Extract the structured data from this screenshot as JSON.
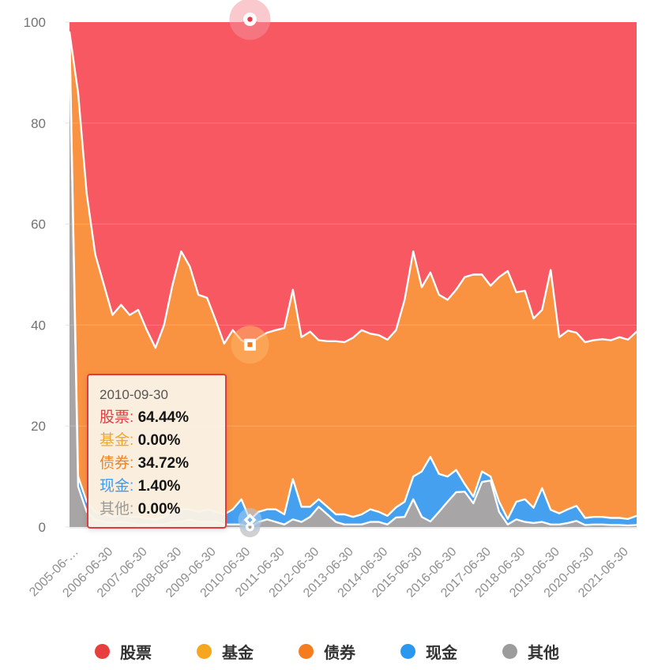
{
  "chart_data": {
    "type": "area",
    "stacked": true,
    "title": "",
    "xlabel": "",
    "ylabel": "",
    "ylim": [
      0,
      100
    ],
    "y_ticks": [
      0,
      20,
      40,
      60,
      80,
      100
    ],
    "grid": true,
    "legend_position": "bottom",
    "x_count": 67,
    "x_tick_every": 4,
    "x_tick_labels": [
      "2005-06-…",
      "2006-06-30",
      "2007-06-30",
      "2008-06-30",
      "2009-06-30",
      "2010-06-30",
      "2011-06-30",
      "2012-06-30",
      "2013-06-30",
      "2014-06-30",
      "2015-06-30",
      "2016-06-30",
      "2017-06-30",
      "2018-06-30",
      "2019-06-30",
      "2020-06-30",
      "2021-06-30"
    ],
    "stack_order_bottom_to_top": [
      "other",
      "cash",
      "bonds",
      "funds",
      "stocks"
    ],
    "series": [
      {
        "id": "stocks",
        "name": "股票",
        "color": "#f75862",
        "values": [
          2,
          14,
          34,
          46,
          52,
          58,
          56,
          58,
          57,
          61,
          64.5,
          60,
          52,
          45.4,
          48.4,
          54,
          54.6,
          59,
          63.7,
          61,
          63,
          64.44,
          62.5,
          61.5,
          61,
          60.6,
          53,
          62.4,
          61.3,
          63,
          63.2,
          63.2,
          63.4,
          62.5,
          61,
          61.7,
          62,
          62.9,
          61,
          55,
          45.4,
          52.5,
          49.6,
          54,
          55,
          53,
          50.5,
          50,
          50,
          52.2,
          50.5,
          49.3,
          53.5,
          53.2,
          58.7,
          57,
          49.1,
          62.4,
          61.1,
          61.5,
          63.4,
          63,
          62.8,
          63,
          62.4,
          62.9,
          61.3
        ]
      },
      {
        "id": "funds",
        "name": "基金",
        "color": "#f7a71f",
        "values": [
          0,
          0,
          0,
          0,
          0,
          0,
          0,
          0,
          0,
          0,
          0,
          0,
          0,
          0,
          0,
          0,
          0,
          0,
          0,
          0,
          0,
          0,
          0,
          0,
          0,
          0,
          0,
          0,
          0,
          0,
          0,
          0,
          0,
          0,
          0,
          0,
          0,
          0,
          0,
          0,
          0,
          0,
          0,
          0,
          0,
          0,
          0,
          0,
          0,
          0,
          0,
          0,
          0,
          0,
          0,
          0,
          0,
          0,
          0,
          0,
          0,
          0,
          0,
          0,
          0,
          0,
          0
        ]
      },
      {
        "id": "bonds",
        "name": "债券",
        "color": "#f99342",
        "values": [
          0,
          76,
          61,
          51,
          45.5,
          40,
          41.5,
          40,
          41,
          37.3,
          34,
          38,
          45,
          51.1,
          48.1,
          43,
          41.9,
          38,
          33.8,
          35.5,
          31.5,
          34.72,
          34.5,
          35,
          35.5,
          36.9,
          37.5,
          33.6,
          34.7,
          31.5,
          32.8,
          34.3,
          34.1,
          35.5,
          36.5,
          34.8,
          35,
          34.9,
          35.1,
          40,
          44.6,
          36.5,
          36.5,
          35.5,
          35,
          35.7,
          41,
          44,
          39,
          37.8,
          44.5,
          49.1,
          41.5,
          41.3,
          37.5,
          35.3,
          47.5,
          34.9,
          35.4,
          34.3,
          34.8,
          35,
          35.2,
          35.2,
          35.8,
          35.5,
          36.5
        ]
      },
      {
        "id": "cash",
        "name": "现金",
        "color": "#46a0f0",
        "values": [
          1,
          2,
          2,
          1.5,
          1.5,
          1.2,
          1.5,
          1.2,
          1.5,
          1.2,
          1,
          1.5,
          2,
          2.5,
          2,
          2,
          2.5,
          2,
          2,
          3,
          5,
          1.4,
          2,
          2,
          2.5,
          2,
          8,
          3,
          2,
          1.5,
          1.5,
          1.5,
          2,
          1.5,
          2,
          2.5,
          2,
          1.7,
          2,
          3,
          4.5,
          9,
          12.8,
          7.5,
          5,
          4.4,
          1.5,
          1.3,
          2.1,
          0.8,
          2,
          1.1,
          3.5,
          4.5,
          3,
          6.7,
          2.9,
          2.2,
          2.7,
          3,
          1.4,
          1.5,
          1.5,
          1.4,
          1.4,
          1.3,
          1.8
        ]
      },
      {
        "id": "other",
        "name": "其他",
        "color": "#a7a5a5",
        "values": [
          97,
          8,
          3,
          1.5,
          1,
          0.8,
          1,
          0.8,
          0.5,
          0.5,
          0.5,
          0.5,
          1,
          1,
          1.5,
          1,
          1,
          1,
          0.5,
          0.5,
          0.5,
          0,
          1,
          1.5,
          1,
          0.5,
          1.5,
          1,
          2,
          4,
          2.5,
          1,
          0.5,
          0.5,
          0.5,
          1,
          1,
          0.5,
          1.9,
          2,
          5.5,
          2,
          1.1,
          3,
          5,
          6.9,
          7,
          4.7,
          8.9,
          9.2,
          3,
          0.5,
          1.5,
          1,
          0.8,
          1,
          0.5,
          0.5,
          0.8,
          1.2,
          0.4,
          0.5,
          0.5,
          0.4,
          0.4,
          0.3,
          0.4
        ]
      }
    ]
  },
  "hover": {
    "x_index": 21,
    "date": "2010-09-30",
    "markers": [
      {
        "series": "stocks",
        "symbol": "circle",
        "cum_value": 100.56,
        "halo": "#f4949e",
        "halo_r": 26,
        "halo_opacity": 0.5,
        "center": "#e23848"
      },
      {
        "series": "bonds",
        "symbol": "square",
        "cum_value": 36.12,
        "halo": "#fbaf63",
        "halo_r": 24,
        "halo_opacity": 0.6,
        "center": "#e87c1f"
      },
      {
        "series": "other",
        "symbol": "circle-small",
        "cum_value": 0,
        "halo": "#b3b1b1",
        "halo_r": 13,
        "halo_opacity": 0.6,
        "center": "#9a9a9a"
      },
      {
        "series": "cash",
        "symbol": "diamond",
        "cum_value": 1.4,
        "halo": "#a9cef2",
        "halo_r": 15,
        "halo_opacity": 0.55,
        "center": "#6fb0ea"
      }
    ]
  },
  "tooltip": {
    "date": "2010-09-30",
    "rows": [
      {
        "label": "股票",
        "value": "64.44%",
        "color": "#e23e44"
      },
      {
        "label": "基金",
        "value": "0.00%",
        "color": "#f7a722"
      },
      {
        "label": "债券",
        "value": "34.72%",
        "color": "#f2821f"
      },
      {
        "label": "现金",
        "value": "1.40%",
        "color": "#3b9cf2"
      },
      {
        "label": "其他",
        "value": "0.00%",
        "color": "#9b9b9b"
      }
    ]
  },
  "legend": {
    "items": [
      {
        "label": "股票",
        "color": "#e83e3e"
      },
      {
        "label": "基金",
        "color": "#f7a71f"
      },
      {
        "label": "债券",
        "color": "#f57d20"
      },
      {
        "label": "现金",
        "color": "#2b98f0"
      },
      {
        "label": "其他",
        "color": "#9c9c9c"
      }
    ]
  }
}
